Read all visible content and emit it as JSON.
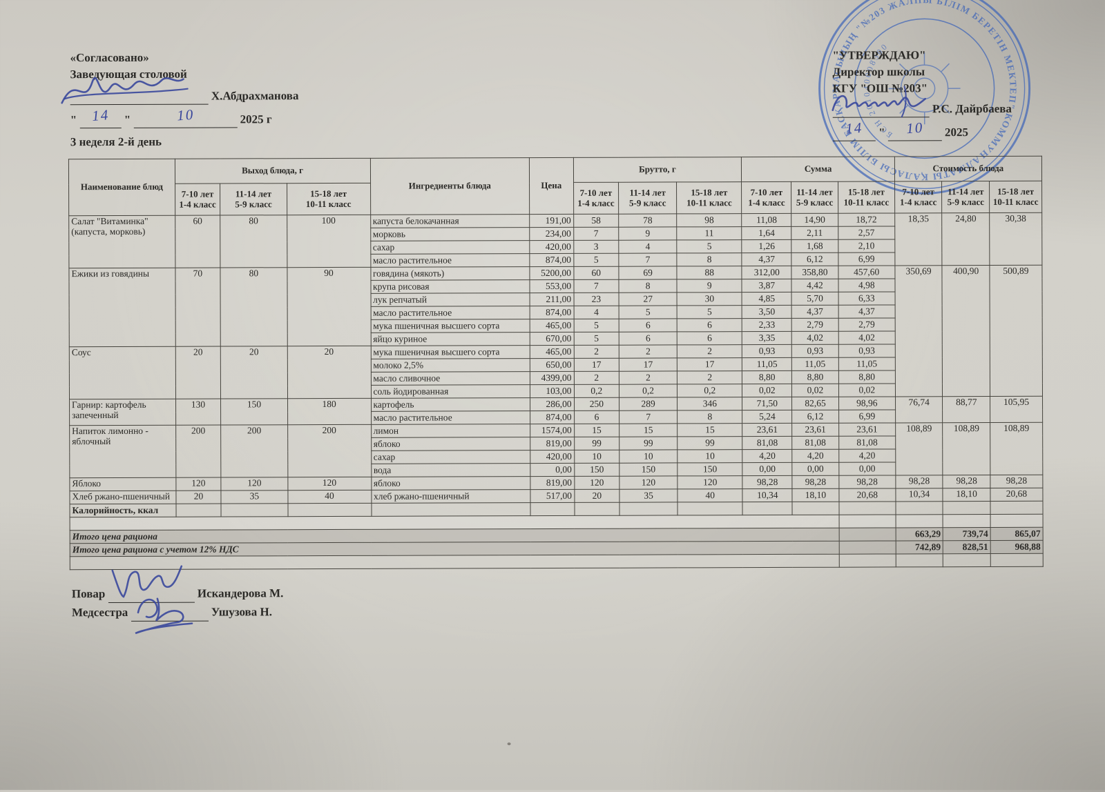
{
  "document": {
    "agree_block": {
      "title": "«Согласовано»",
      "role": "Заведующая столовой",
      "name": "Х.Абдрахманова",
      "day": "14",
      "month": "10",
      "year": "2025 г"
    },
    "approve_block": {
      "title": "\"УТВЕРЖДАЮ\"",
      "role": "Директор школы",
      "org": "КГУ \"ОШ №203\"",
      "name": "Р.С. Дайрбаева",
      "day": "14",
      "month": "10",
      "year": "2025"
    },
    "week_label": "3 неделя 2-й день",
    "footer": {
      "cook_label": "Повар",
      "cook_name": "Искандерова М.",
      "nurse_label": "Медсестра",
      "nurse_name": "Ушузова Н."
    }
  },
  "stamp": {
    "ring_text": "АЛМАТЫ ҚАЛАСЫ БІЛІМ БАСҚАРМАСЫНЫҢ \"№203 ЖАЛПЫ БІЛІМ БЕРЕТІН МЕКТЕП\" КОММУНАЛДЫҚ МЕМЛЕКЕТТІК МЕКЕМЕСІ ✳",
    "center_text": "БСН 201040008300",
    "color": "#3c63b8"
  },
  "table": {
    "headers": {
      "name": "Наименование блюд",
      "out_group": "Выход блюда, г",
      "ingredients": "Ингредиенты блюда",
      "price": "Цена",
      "brutto_group": "Брутто, г",
      "sum_group": "Сумма",
      "cost_group": "Стоимость блюда"
    },
    "age_cols": [
      {
        "l1": "7-10 лет",
        "l2": "1-4 класс"
      },
      {
        "l1": "11-14 лет",
        "l2": "5-9 класс"
      },
      {
        "l1": "15-18 лет",
        "l2": "10-11 класс"
      }
    ],
    "dishes": [
      {
        "name_lines": [
          "Салат \"Витаминка\"",
          "(капуста, морковь)"
        ],
        "out": [
          "60",
          "80",
          "100"
        ],
        "cost": [
          "18,35",
          "24,80",
          "30,38"
        ],
        "cost_rowspan": 4,
        "rows": [
          {
            "ing": "капуста белокачанная",
            "price": "191,00",
            "brutto": [
              "58",
              "78",
              "98"
            ],
            "sum": [
              "11,08",
              "14,90",
              "18,72"
            ]
          },
          {
            "ing": "морковь",
            "price": "234,00",
            "brutto": [
              "7",
              "9",
              "11"
            ],
            "sum": [
              "1,64",
              "2,11",
              "2,57"
            ]
          },
          {
            "ing": "сахар",
            "price": "420,00",
            "brutto": [
              "3",
              "4",
              "5"
            ],
            "sum": [
              "1,26",
              "1,68",
              "2,10"
            ]
          },
          {
            "ing": "масло растительное",
            "price": "874,00",
            "brutto": [
              "5",
              "7",
              "8"
            ],
            "sum": [
              "4,37",
              "6,12",
              "6,99"
            ]
          }
        ]
      },
      {
        "name_lines": [
          "Ежики из говядины"
        ],
        "out": [
          "70",
          "80",
          "90"
        ],
        "cost": [
          "350,69",
          "400,90",
          "500,89"
        ],
        "cost_rowspan": 10,
        "rows": [
          {
            "ing": "говядина (мякоть)",
            "price": "5200,00",
            "brutto": [
              "60",
              "69",
              "88"
            ],
            "sum": [
              "312,00",
              "358,80",
              "457,60"
            ]
          },
          {
            "ing": "крупа рисовая",
            "price": "553,00",
            "brutto": [
              "7",
              "8",
              "9"
            ],
            "sum": [
              "3,87",
              "4,42",
              "4,98"
            ]
          },
          {
            "ing": "лук репчатый",
            "price": "211,00",
            "brutto": [
              "23",
              "27",
              "30"
            ],
            "sum": [
              "4,85",
              "5,70",
              "6,33"
            ]
          },
          {
            "ing": "масло растительное",
            "price": "874,00",
            "brutto": [
              "4",
              "5",
              "5"
            ],
            "sum": [
              "3,50",
              "4,37",
              "4,37"
            ]
          },
          {
            "ing": "мука пшеничная высшего сорта",
            "price": "465,00",
            "brutto": [
              "5",
              "6",
              "6"
            ],
            "sum": [
              "2,33",
              "2,79",
              "2,79"
            ]
          },
          {
            "ing": "яйцо куриное",
            "price": "670,00",
            "brutto": [
              "5",
              "6",
              "6"
            ],
            "sum": [
              "3,35",
              "4,02",
              "4,02"
            ]
          }
        ]
      },
      {
        "name_lines": [
          "Соус"
        ],
        "out": [
          "20",
          "20",
          "20"
        ],
        "cost": null,
        "rows": [
          {
            "ing": "мука пшеничная высшего сорта",
            "price": "465,00",
            "brutto": [
              "2",
              "2",
              "2"
            ],
            "sum": [
              "0,93",
              "0,93",
              "0,93"
            ]
          },
          {
            "ing": "молоко 2,5%",
            "price": "650,00",
            "brutto": [
              "17",
              "17",
              "17"
            ],
            "sum": [
              "11,05",
              "11,05",
              "11,05"
            ]
          },
          {
            "ing": "масло сливочное",
            "price": "4399,00",
            "brutto": [
              "2",
              "2",
              "2"
            ],
            "sum": [
              "8,80",
              "8,80",
              "8,80"
            ]
          },
          {
            "ing": "соль йодированная",
            "price": "103,00",
            "brutto": [
              "0,2",
              "0,2",
              "0,2"
            ],
            "sum": [
              "0,02",
              "0,02",
              "0,02"
            ]
          }
        ]
      },
      {
        "name_lines": [
          "Гарнир:  картофель",
          "запеченный"
        ],
        "out": [
          "130",
          "150",
          "180"
        ],
        "cost": [
          "76,74",
          "88,77",
          "105,95"
        ],
        "cost_rowspan": 2,
        "rows": [
          {
            "ing": "картофель",
            "price": "286,00",
            "brutto": [
              "250",
              "289",
              "346"
            ],
            "sum": [
              "71,50",
              "82,65",
              "98,96"
            ]
          },
          {
            "ing": "масло растительное",
            "price": "874,00",
            "brutto": [
              "6",
              "7",
              "8"
            ],
            "sum": [
              "5,24",
              "6,12",
              "6,99"
            ]
          }
        ]
      },
      {
        "name_lines": [
          "Напиток лимонно -",
          "яблочный"
        ],
        "out": [
          "200",
          "200",
          "200"
        ],
        "cost": [
          "108,89",
          "108,89",
          "108,89"
        ],
        "cost_rowspan": 4,
        "rows": [
          {
            "ing": "лимон",
            "price": "1574,00",
            "brutto": [
              "15",
              "15",
              "15"
            ],
            "sum": [
              "23,61",
              "23,61",
              "23,61"
            ],
            "tall": true
          },
          {
            "ing": "яблоко",
            "price": "819,00",
            "brutto": [
              "99",
              "99",
              "99"
            ],
            "sum": [
              "81,08",
              "81,08",
              "81,08"
            ]
          },
          {
            "ing": "сахар",
            "price": "420,00",
            "brutto": [
              "10",
              "10",
              "10"
            ],
            "sum": [
              "4,20",
              "4,20",
              "4,20"
            ]
          },
          {
            "ing": "вода",
            "price": "0,00",
            "brutto": [
              "150",
              "150",
              "150"
            ],
            "sum": [
              "0,00",
              "0,00",
              "0,00"
            ]
          }
        ]
      },
      {
        "name_lines": [
          "Яблоко"
        ],
        "out": [
          "120",
          "120",
          "120"
        ],
        "cost": [
          "98,28",
          "98,28",
          "98,28"
        ],
        "cost_rowspan": 1,
        "rows": [
          {
            "ing": "яблоко",
            "price": "819,00",
            "brutto": [
              "120",
              "120",
              "120"
            ],
            "sum": [
              "98,28",
              "98,28",
              "98,28"
            ]
          }
        ]
      },
      {
        "name_lines": [
          "Хлеб ржано-пшеничный"
        ],
        "out": [
          "20",
          "35",
          "40"
        ],
        "cost": [
          "10,34",
          "18,10",
          "20,68"
        ],
        "cost_rowspan": 1,
        "rows": [
          {
            "ing": "хлеб ржано-пшеничный",
            "price": "517,00",
            "brutto": [
              "20",
              "35",
              "40"
            ],
            "sum": [
              "10,34",
              "18,10",
              "20,68"
            ]
          }
        ]
      }
    ],
    "kcal_label": "Калорийность, ккал",
    "totals": [
      {
        "label": "Итого цена рациона",
        "values": [
          "663,29",
          "739,74",
          "865,07"
        ]
      },
      {
        "label": "Итого цена рациона с учетом 12% НДС",
        "values": [
          "742,89",
          "828,51",
          "968,88"
        ]
      }
    ]
  }
}
